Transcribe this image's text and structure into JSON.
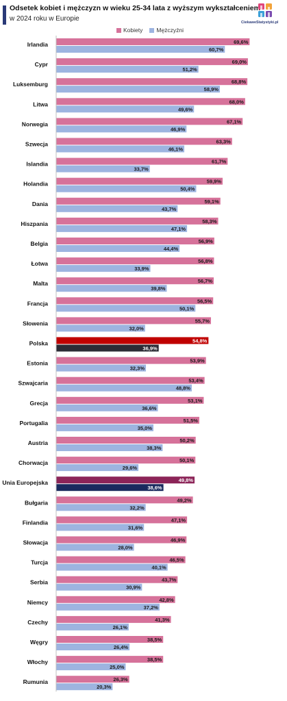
{
  "header": {
    "title": "Odsetek kobiet i mężczyzn w wieku 25-34 lata z wyższym wykształceniem",
    "subtitle": "w 2024 roku w Europie",
    "logo_text": "CiekaweStatystyki.pl"
  },
  "colors": {
    "women": "#d6729a",
    "men": "#9db4e0",
    "poland_women": "#c00000",
    "poland_men": "#2b2b35",
    "eu_women": "#8c2458",
    "eu_men": "#1a2a5e"
  },
  "chart_data": {
    "type": "bar",
    "orientation": "horizontal",
    "title": "Odsetek kobiet i mężczyzn w wieku 25-34 lata z wyższym wykształceniem",
    "subtitle": "w 2024 roku w Europie",
    "legend": [
      "Kobiety",
      "Mężczyźni"
    ],
    "legend_position": "top",
    "xlim": [
      0,
      70
    ],
    "grid": false,
    "categories": [
      "Irlandia",
      "Cypr",
      "Luksemburg",
      "Litwa",
      "Norwegia",
      "Szwecja",
      "Islandia",
      "Holandia",
      "Dania",
      "Hiszpania",
      "Belgia",
      "Łotwa",
      "Malta",
      "Francja",
      "Słowenia",
      "Polska",
      "Estonia",
      "Szwajcaria",
      "Grecja",
      "Portugalia",
      "Austria",
      "Chorwacja",
      "Unia Europejska",
      "Bułgaria",
      "Finlandia",
      "Słowacja",
      "Turcja",
      "Serbia",
      "Niemcy",
      "Czechy",
      "Węgry",
      "Włochy",
      "Rumunia"
    ],
    "series": [
      {
        "name": "Kobiety",
        "values": [
          69.6,
          69.0,
          68.8,
          68.0,
          67.1,
          63.3,
          61.7,
          59.9,
          59.1,
          58.3,
          56.9,
          56.8,
          56.7,
          56.5,
          55.7,
          54.8,
          53.9,
          53.4,
          53.1,
          51.5,
          50.2,
          50.1,
          49.8,
          49.2,
          47.1,
          46.9,
          46.5,
          43.7,
          42.8,
          41.3,
          38.5,
          38.5,
          26.3
        ],
        "labels": [
          "69,6%",
          "69,0%",
          "68,8%",
          "68,0%",
          "67,1%",
          "63,3%",
          "61,7%",
          "59,9%",
          "59,1%",
          "58,3%",
          "56,9%",
          "56,8%",
          "56,7%",
          "56,5%",
          "55,7%",
          "54,8%",
          "53,9%",
          "53,4%",
          "53,1%",
          "51,5%",
          "50,2%",
          "50,1%",
          "49,8%",
          "49,2%",
          "47,1%",
          "46,9%",
          "46,5%",
          "43,7%",
          "42,8%",
          "41,3%",
          "38,5%",
          "38,5%",
          "26,3%"
        ]
      },
      {
        "name": "Mężczyźni",
        "values": [
          60.7,
          51.2,
          58.9,
          49.6,
          46.9,
          46.1,
          33.7,
          50.4,
          43.7,
          47.1,
          44.4,
          33.9,
          39.8,
          50.1,
          32.0,
          36.9,
          32.3,
          48.8,
          36.6,
          35.0,
          38.3,
          29.6,
          38.6,
          32.2,
          31.6,
          28.0,
          40.1,
          30.9,
          37.2,
          26.1,
          26.4,
          25.0,
          20.3
        ],
        "labels": [
          "60,7%",
          "51,2%",
          "58,9%",
          "49,6%",
          "46,9%",
          "46,1%",
          "33,7%",
          "50,4%",
          "43,7%",
          "47,1%",
          "44,4%",
          "33,9%",
          "39,8%",
          "50,1%",
          "32,0%",
          "36,9%",
          "32,3%",
          "48,8%",
          "36,6%",
          "35,0%",
          "38,3%",
          "29,6%",
          "38,6%",
          "32,2%",
          "31,6%",
          "28,0%",
          "40,1%",
          "30,9%",
          "37,2%",
          "26,1%",
          "26,4%",
          "25,0%",
          "20,3%"
        ]
      }
    ],
    "highlights": {
      "Polska": "poland",
      "Unia Europejska": "eu"
    }
  }
}
